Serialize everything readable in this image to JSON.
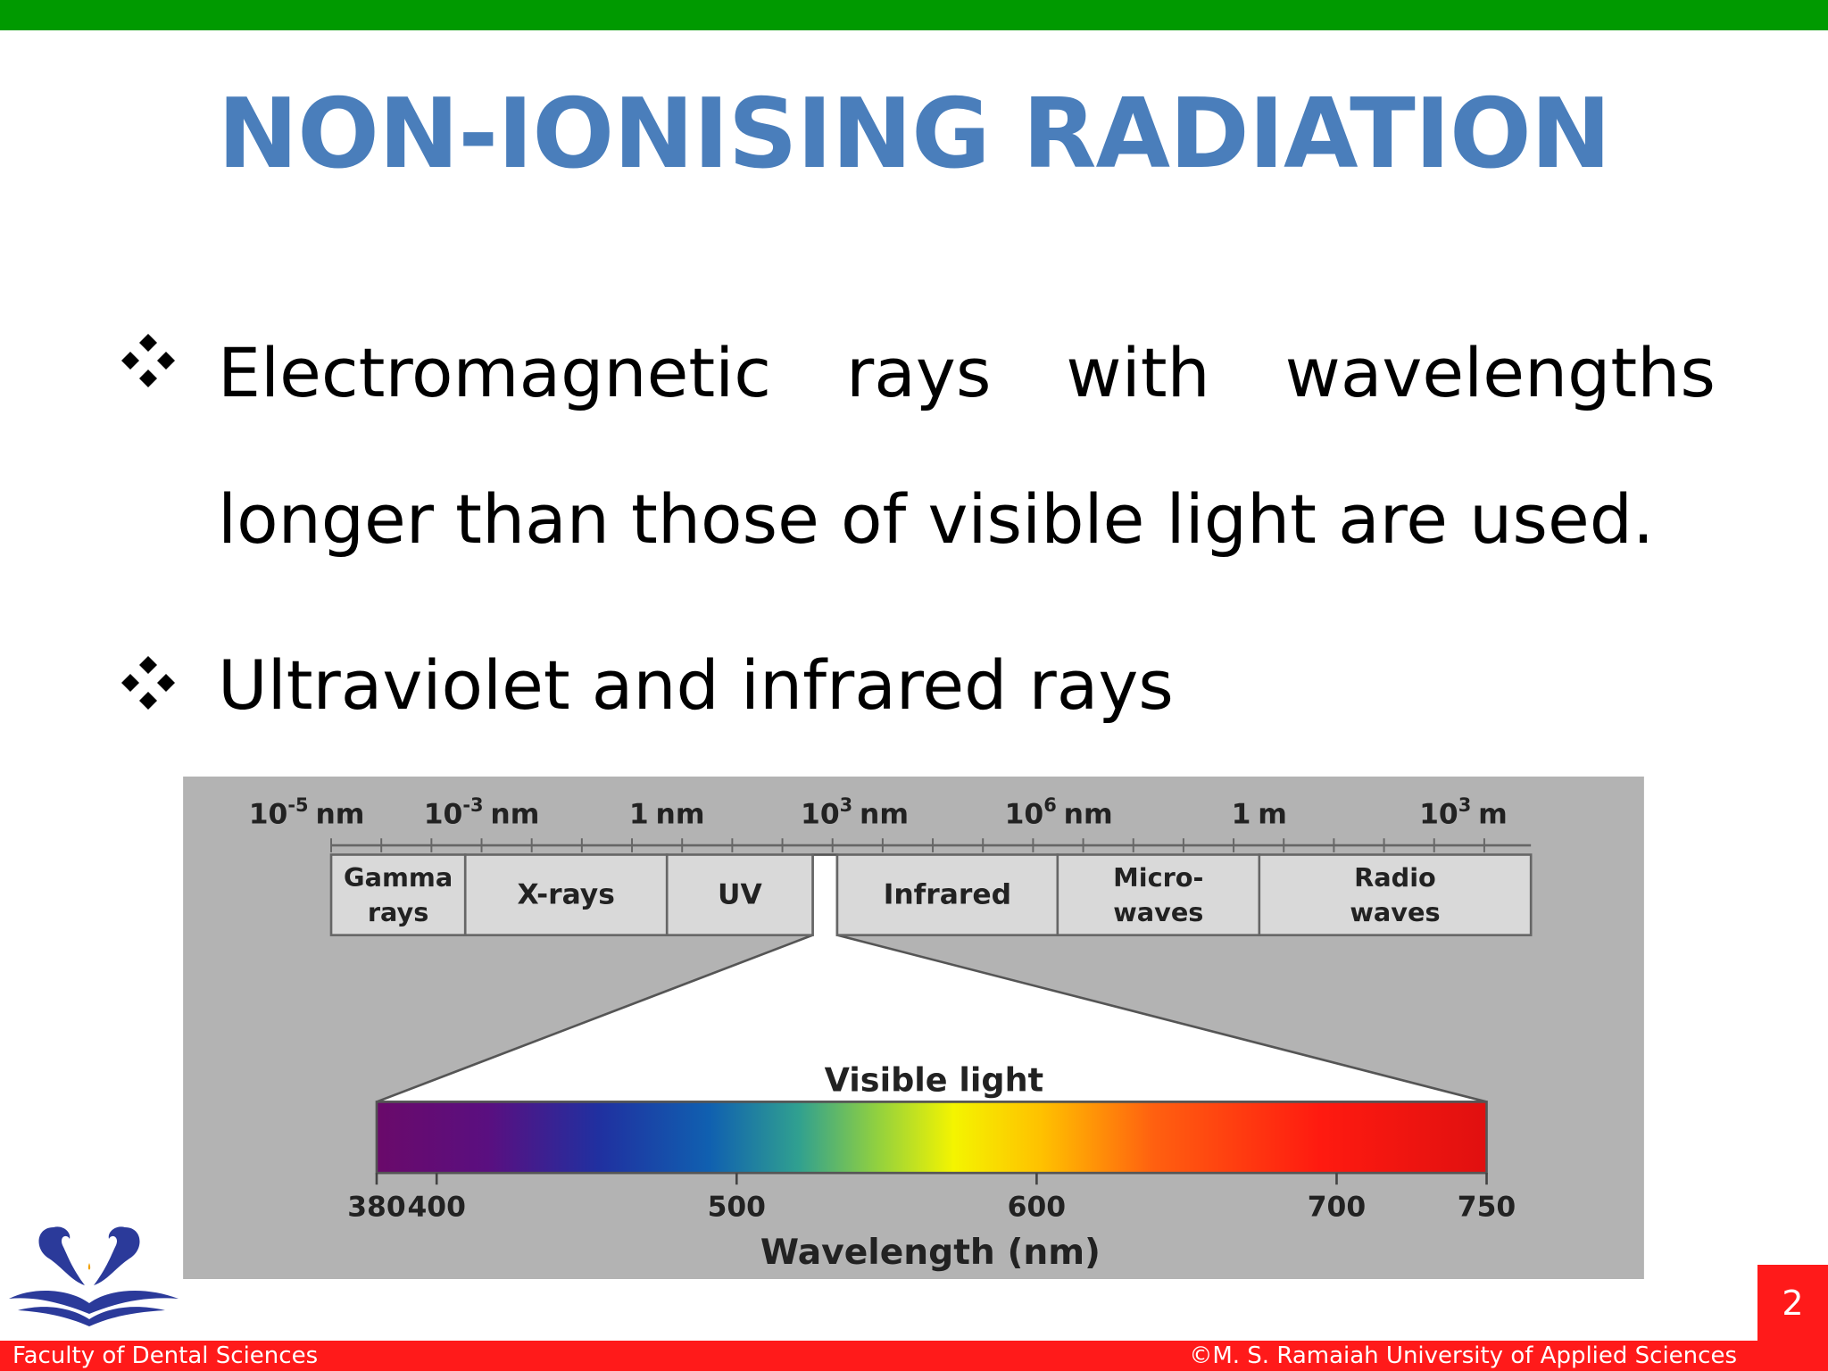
{
  "header": {
    "title": "NON-IONISING RADIATION"
  },
  "bullets": [
    "Electromagnetic rays with wavelengths longer than those of visible light are used.",
    "Ultraviolet and infrared rays"
  ],
  "figure": {
    "scale_labels": [
      {
        "base": "10",
        "exp": "-5",
        "unit": "nm"
      },
      {
        "base": "10",
        "exp": "-3",
        "unit": "nm"
      },
      {
        "base": "1",
        "unit": "nm"
      },
      {
        "base": "10",
        "exp": "3",
        "unit": "nm"
      },
      {
        "base": "10",
        "exp": "6",
        "unit": "nm"
      },
      {
        "base": "1",
        "unit": "m"
      },
      {
        "base": "10",
        "exp": "3",
        "unit": "m"
      }
    ],
    "bands": [
      [
        "Gamma",
        "rays"
      ],
      [
        "X-rays"
      ],
      [
        "UV"
      ],
      [
        "Infrared"
      ],
      [
        "Micro-",
        "waves"
      ],
      [
        "Radio",
        "waves"
      ]
    ],
    "visible_label": "Visible light",
    "wavelength_range": [
      380,
      750
    ],
    "wavelength_ticks": [
      380,
      400,
      500,
      600,
      700,
      750
    ],
    "axis_label": "Wavelength (nm)"
  },
  "footer": {
    "left": "Faculty of Dental Sciences",
    "right": "©M. S. Ramaiah University of Applied Sciences",
    "page": "2"
  }
}
